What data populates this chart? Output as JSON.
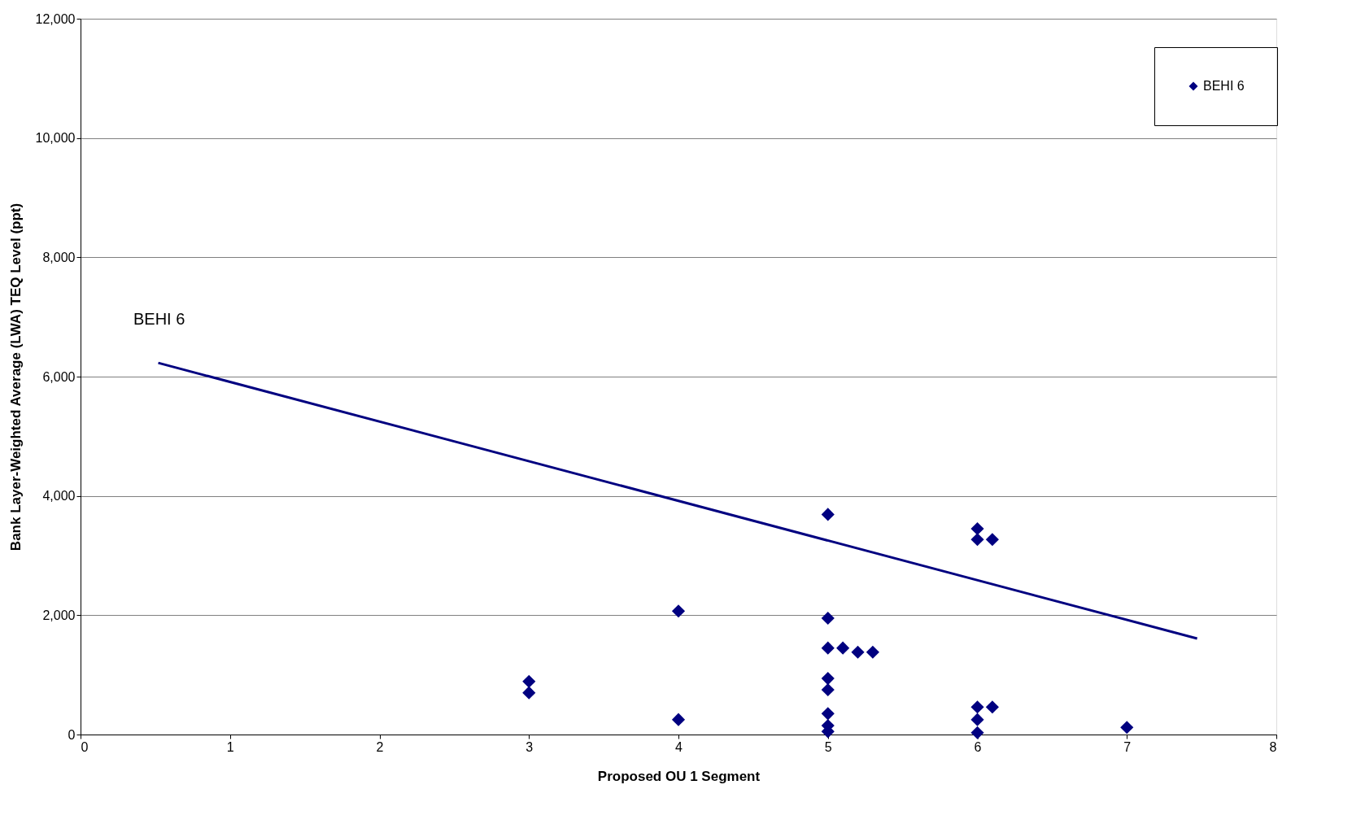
{
  "chart_data": {
    "type": "scatter",
    "xlabel": "Proposed OU 1 Segment",
    "ylabel": "Bank Layer-Weighted Average (LWA) TEQ Level (ppt)",
    "xlim": [
      0,
      8
    ],
    "xticks": [
      0,
      1,
      2,
      3,
      4,
      5,
      6,
      7,
      8
    ],
    "ylim": [
      0,
      12000
    ],
    "yticks": [
      0,
      {
        "value": 2000,
        "label": "2,000"
      },
      {
        "value": 4000,
        "label": "4,000"
      },
      {
        "value": 6000,
        "label": "6,000"
      },
      {
        "value": 8000,
        "label": "8,000"
      },
      {
        "value": 10000,
        "label": "10,000"
      },
      {
        "value": 12000,
        "label": "12,000"
      }
    ],
    "grid": "y",
    "legend": "top right",
    "marker": "diamond",
    "series": [
      {
        "name": "BEHI 6",
        "color": "#000080",
        "x": [
          3,
          3,
          4,
          4,
          5,
          5,
          5,
          5,
          5,
          5,
          5,
          5,
          5.1,
          5.2,
          5.3,
          6,
          6,
          6.1,
          6,
          6.1,
          6,
          6,
          7
        ],
        "values": [
          890,
          700,
          2070,
          250,
          3690,
          1950,
          1450,
          940,
          750,
          350,
          150,
          50,
          1450,
          1380,
          1380,
          3450,
          3270,
          3270,
          460,
          460,
          250,
          30,
          120
        ]
      },
      {
        "type": "line",
        "color": "#000080",
        "x": [
          0.52,
          7.47
        ],
        "values": [
          6230,
          1610
        ],
        "line_style": "solid",
        "marker": "none"
      }
    ],
    "annotations": [
      "BEHI 6"
    ]
  }
}
